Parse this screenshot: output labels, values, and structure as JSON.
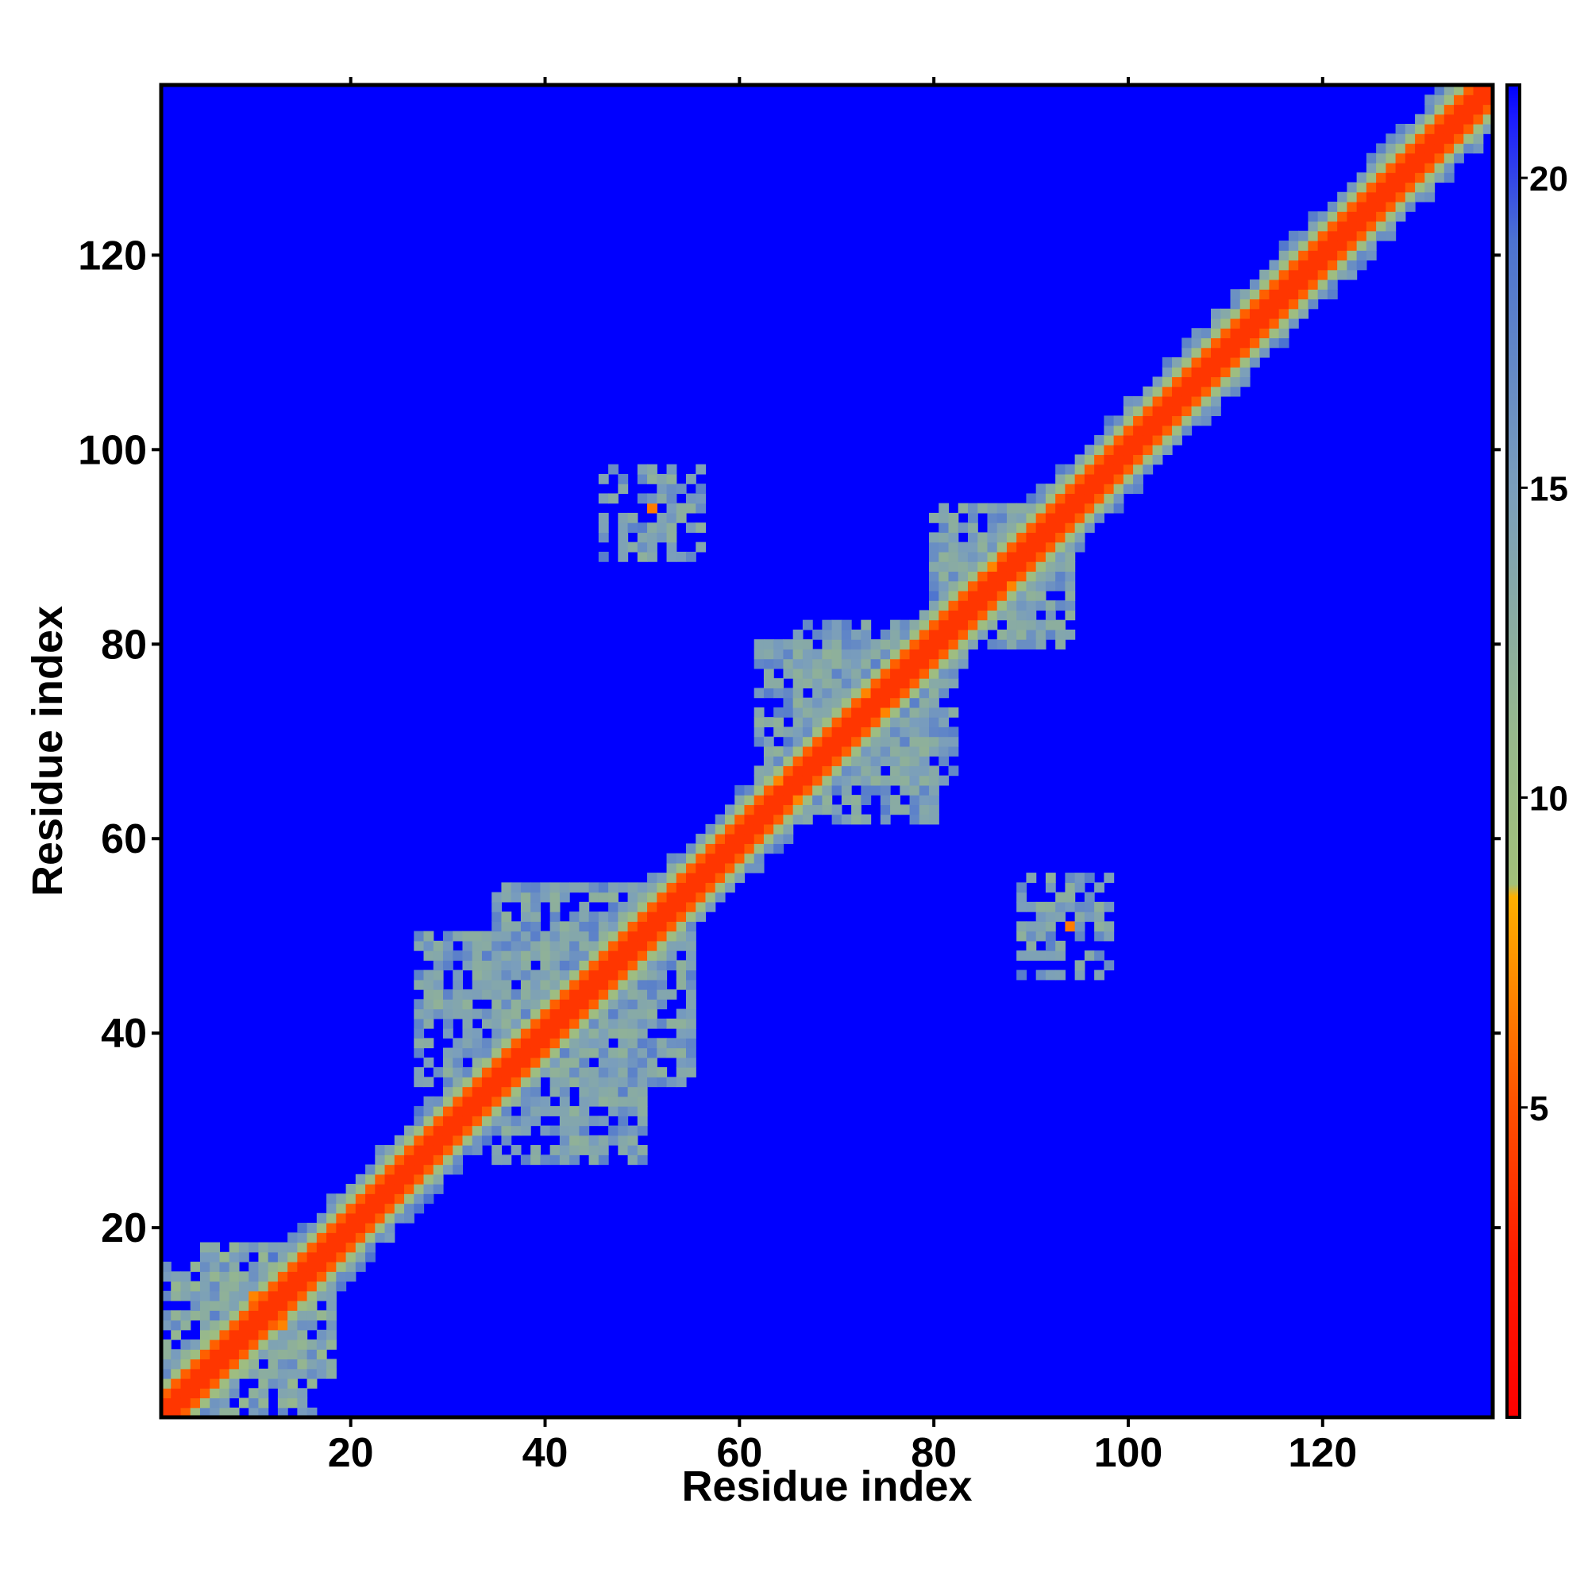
{
  "chart_data": {
    "type": "heatmap",
    "title": "",
    "xlabel": "Residue index",
    "ylabel": "Residue index",
    "xlim": [
      0.5,
      137.5
    ],
    "ylim": [
      0.5,
      137.5
    ],
    "x_ticks": [
      20,
      40,
      60,
      80,
      100,
      120
    ],
    "y_ticks": [
      20,
      40,
      60,
      80,
      100,
      120
    ],
    "colorbar": {
      "range": [
        0,
        21.5
      ],
      "ticks": [
        5,
        10,
        15,
        20
      ],
      "stops": [
        {
          "value": 0,
          "color": "#ff0000"
        },
        {
          "value": 2.5,
          "color": "#ff1a00"
        },
        {
          "value": 5,
          "color": "#ff5000"
        },
        {
          "value": 7,
          "color": "#ff8a00"
        },
        {
          "value": 8.4,
          "color": "#ffb000"
        },
        {
          "value": 8.6,
          "color": "#a2c07a"
        },
        {
          "value": 11,
          "color": "#97b88c"
        },
        {
          "value": 15,
          "color": "#7a9ebc"
        },
        {
          "value": 19,
          "color": "#4c72d0"
        },
        {
          "value": 21,
          "color": "#1a1aff"
        },
        {
          "value": 21.5,
          "color": "#0000ff"
        }
      ]
    },
    "background_color": "#0000ff",
    "n_residues": 137,
    "description_values": {
      "diagonal_band": {
        "from": 1,
        "to": 137,
        "distance_core": 3.8,
        "distance_second": 5.5,
        "distance_third": 9.5,
        "distance_fourth": 13
      },
      "clusters": [
        {
          "i": [
            27,
            55
          ],
          "j": [
            35,
            50
          ],
          "distance": 12,
          "density": 0.55
        },
        {
          "i": [
            35,
            50
          ],
          "j": [
            27,
            55
          ],
          "distance": 12,
          "density": 0.55
        },
        {
          "i": [
            62,
            82
          ],
          "j": [
            66,
            80
          ],
          "distance": 12,
          "density": 0.55
        },
        {
          "i": [
            66,
            80
          ],
          "j": [
            62,
            82
          ],
          "distance": 12,
          "density": 0.55
        },
        {
          "i": [
            83,
            94
          ],
          "j": [
            80,
            92
          ],
          "distance": 12,
          "density": 0.5
        },
        {
          "i": [
            80,
            92
          ],
          "j": [
            83,
            94
          ],
          "distance": 12,
          "density": 0.5
        },
        {
          "i": [
            1,
            18
          ],
          "j": [
            5,
            16
          ],
          "distance": 11,
          "density": 0.5
        },
        {
          "i": [
            5,
            16
          ],
          "j": [
            1,
            18
          ],
          "distance": 11,
          "density": 0.5
        },
        {
          "i": [
            46,
            56
          ],
          "j": [
            89,
            98
          ],
          "distance": 12,
          "density": 0.35
        },
        {
          "i": [
            89,
            98
          ],
          "j": [
            46,
            56
          ],
          "distance": 12,
          "density": 0.35
        }
      ],
      "hotspots": [
        {
          "i": 51,
          "j": 94,
          "distance": 6.5
        },
        {
          "i": 94,
          "j": 51,
          "distance": 6.5
        },
        {
          "i": 64,
          "j": 66,
          "distance": 6.8
        },
        {
          "i": 66,
          "j": 64,
          "distance": 6.8
        },
        {
          "i": 73,
          "j": 75,
          "distance": 6.8
        },
        {
          "i": 86,
          "j": 88,
          "distance": 6.8
        },
        {
          "i": 10,
          "j": 13,
          "distance": 6.8
        },
        {
          "i": 13,
          "j": 10,
          "distance": 6.8
        }
      ]
    }
  }
}
